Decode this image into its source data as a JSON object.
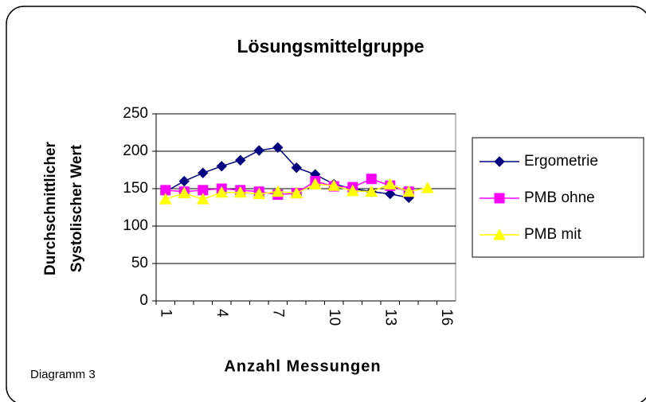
{
  "chart_data": {
    "type": "line",
    "title": "Lösungsmittelgruppe",
    "ylabel": [
      "Durchschnittlicher",
      "Systolischer Wert"
    ],
    "xlabel": "Anzahl Messungen",
    "footnote": "Diagramm 3",
    "categories": [
      1,
      null,
      null,
      4,
      null,
      null,
      7,
      null,
      null,
      10,
      null,
      null,
      13,
      null,
      null,
      16
    ],
    "series": [
      {
        "name": "Ergometrie",
        "color": "#000080",
        "marker": "diamond",
        "values": [
          146,
          160,
          171,
          180,
          188,
          201,
          205,
          178,
          169,
          156,
          150,
          146,
          143,
          138,
          null,
          null
        ]
      },
      {
        "name": "PMB ohne",
        "color": "#ff00ff",
        "marker": "square",
        "values": [
          148,
          146,
          148,
          150,
          148,
          146,
          142,
          144,
          160,
          153,
          152,
          163,
          154,
          146,
          null,
          null
        ]
      },
      {
        "name": "PMB mit",
        "color": "#ffff00",
        "marker": "triangle",
        "values": [
          136,
          144,
          136,
          145,
          145,
          143,
          146,
          144,
          156,
          154,
          147,
          146,
          156,
          146,
          151,
          null
        ]
      }
    ],
    "ylim": [
      0,
      250
    ],
    "yticks": [
      0,
      50,
      100,
      150,
      200,
      250
    ],
    "grid": true,
    "legend": "right"
  }
}
